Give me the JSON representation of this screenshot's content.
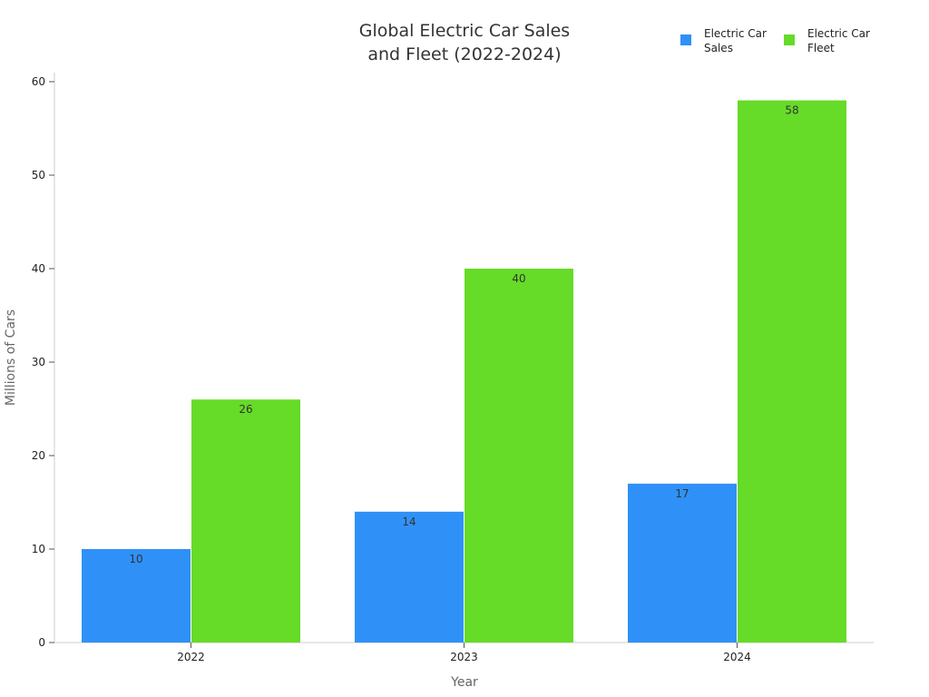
{
  "chart_data": {
    "type": "bar",
    "title_lines": [
      "Global Electric Car Sales",
      "and Fleet (2022-2024)"
    ],
    "xlabel": "Year",
    "ylabel": "Millions of Cars",
    "categories": [
      "2022",
      "2023",
      "2024"
    ],
    "series": [
      {
        "name_lines": [
          "Electric Car",
          "Sales"
        ],
        "values": [
          10,
          14,
          17
        ],
        "color": "#2f91f7"
      },
      {
        "name_lines": [
          "Electric Car",
          "Fleet"
        ],
        "values": [
          26,
          40,
          58
        ],
        "color": "#66db28"
      }
    ],
    "ylim": [
      0,
      60
    ],
    "yticks": [
      0,
      10,
      20,
      30,
      40,
      50,
      60
    ],
    "grid": false,
    "legend": "top-right",
    "data_labels": true
  }
}
